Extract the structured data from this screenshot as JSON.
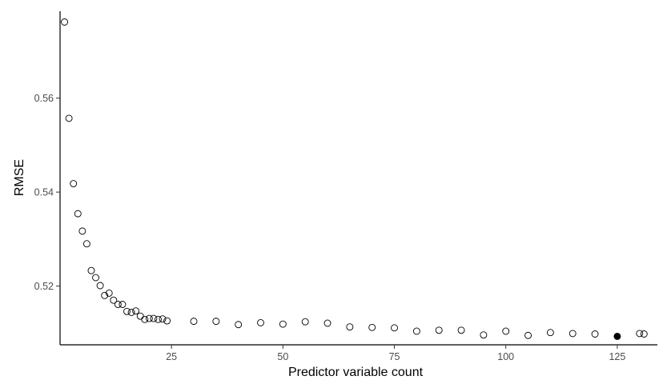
{
  "chart_data": {
    "type": "scatter",
    "xlabel": "Predictor variable count",
    "ylabel": "RMSE",
    "xlim": [
      0,
      134
    ],
    "ylim": [
      0.5075,
      0.5785
    ],
    "x_ticks": [
      25,
      50,
      75,
      100,
      125
    ],
    "y_ticks": [
      0.52,
      0.54,
      0.56
    ],
    "x_tick_labels": [
      "25",
      "50",
      "75",
      "100",
      "125"
    ],
    "y_tick_labels": [
      "0.52",
      "0.54",
      "0.56"
    ],
    "grid": false,
    "legend": "none",
    "colors": {
      "open_point_stroke": "#000000",
      "highlight_fill": "#000000"
    },
    "points": [
      {
        "x": 1,
        "y": 0.5762
      },
      {
        "x": 2,
        "y": 0.5557
      },
      {
        "x": 3,
        "y": 0.5418
      },
      {
        "x": 4,
        "y": 0.5354
      },
      {
        "x": 5,
        "y": 0.5317
      },
      {
        "x": 6,
        "y": 0.529
      },
      {
        "x": 7,
        "y": 0.5233
      },
      {
        "x": 8,
        "y": 0.5218
      },
      {
        "x": 9,
        "y": 0.5201
      },
      {
        "x": 10,
        "y": 0.518
      },
      {
        "x": 11,
        "y": 0.5185
      },
      {
        "x": 12,
        "y": 0.517
      },
      {
        "x": 13,
        "y": 0.5161
      },
      {
        "x": 14,
        "y": 0.5161
      },
      {
        "x": 15,
        "y": 0.5146
      },
      {
        "x": 16,
        "y": 0.5144
      },
      {
        "x": 17,
        "y": 0.5147
      },
      {
        "x": 18,
        "y": 0.5136
      },
      {
        "x": 19,
        "y": 0.5129
      },
      {
        "x": 20,
        "y": 0.5131
      },
      {
        "x": 21,
        "y": 0.5131
      },
      {
        "x": 22,
        "y": 0.5129
      },
      {
        "x": 23,
        "y": 0.513
      },
      {
        "x": 24,
        "y": 0.5126
      },
      {
        "x": 30,
        "y": 0.5125
      },
      {
        "x": 35,
        "y": 0.5125
      },
      {
        "x": 40,
        "y": 0.5118
      },
      {
        "x": 45,
        "y": 0.5122
      },
      {
        "x": 50,
        "y": 0.5119
      },
      {
        "x": 55,
        "y": 0.5124
      },
      {
        "x": 60,
        "y": 0.5121
      },
      {
        "x": 65,
        "y": 0.5113
      },
      {
        "x": 70,
        "y": 0.5112
      },
      {
        "x": 75,
        "y": 0.5111
      },
      {
        "x": 80,
        "y": 0.5104
      },
      {
        "x": 85,
        "y": 0.5106
      },
      {
        "x": 90,
        "y": 0.5106
      },
      {
        "x": 95,
        "y": 0.5096
      },
      {
        "x": 100,
        "y": 0.5104
      },
      {
        "x": 105,
        "y": 0.5095
      },
      {
        "x": 110,
        "y": 0.5101
      },
      {
        "x": 115,
        "y": 0.5099
      },
      {
        "x": 120,
        "y": 0.5098
      },
      {
        "x": 125,
        "y": 0.5093,
        "highlight": true
      },
      {
        "x": 130,
        "y": 0.5099
      },
      {
        "x": 131,
        "y": 0.5098
      }
    ]
  }
}
